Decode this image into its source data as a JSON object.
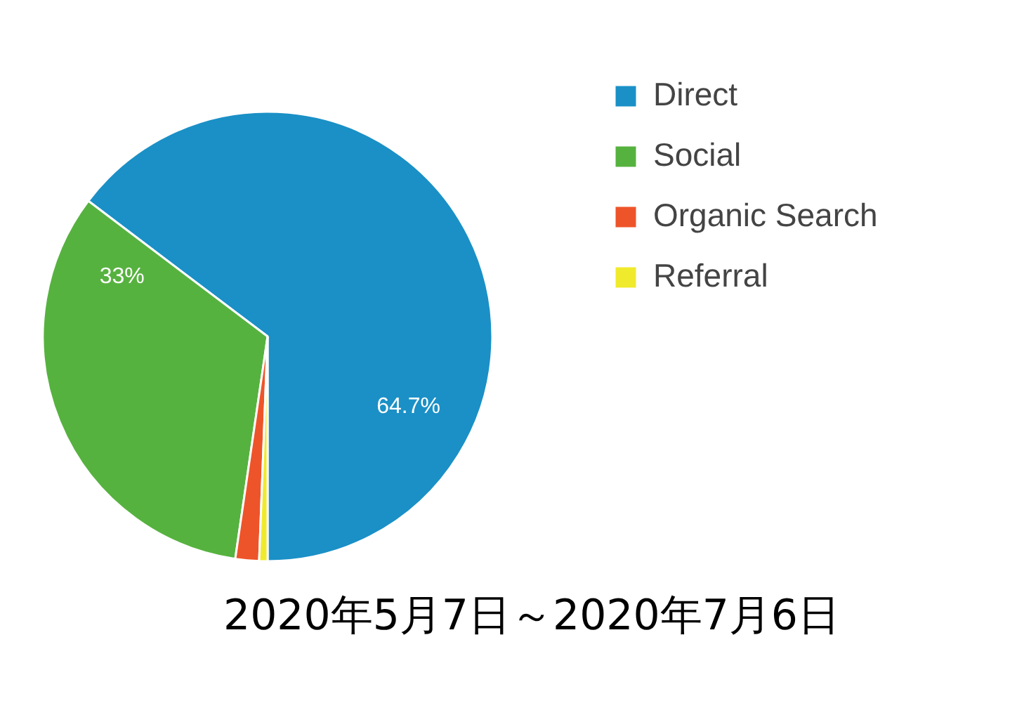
{
  "chart_data": {
    "type": "pie",
    "title": "2020年5月7日～2020年7月6日",
    "categories": [
      "Direct",
      "Social",
      "Organic Search",
      "Referral"
    ],
    "values": [
      64.7,
      33,
      1.7,
      0.6
    ],
    "colors": [
      "#1a90c6",
      "#56b23f",
      "#ee5429",
      "#f0ea2c"
    ],
    "value_labels": [
      "64.7%",
      "33%",
      null,
      null
    ],
    "legend": "right"
  }
}
